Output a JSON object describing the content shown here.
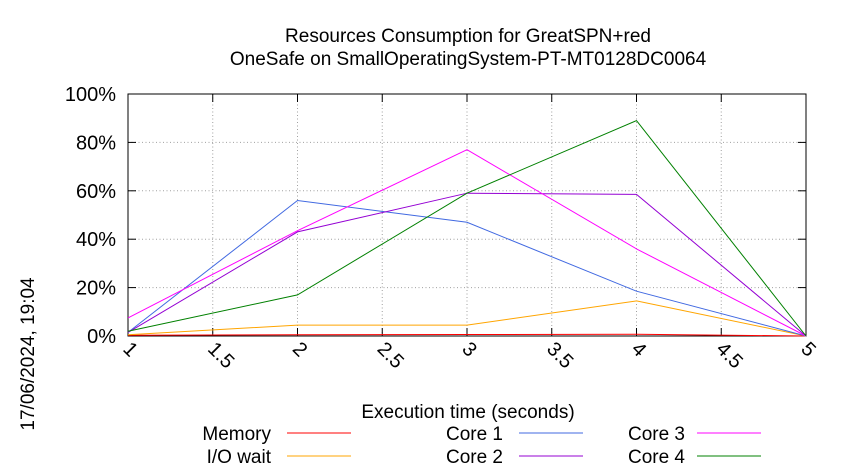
{
  "chart_data": {
    "type": "line",
    "title": "Resources Consumption for GreatSPN+red",
    "subtitle": "OneSafe on SmallOperatingSystem-PT-MT0128DC0064",
    "xlabel": "Execution time (seconds)",
    "ylabel": "",
    "timestamp": "17/06/2024, 19:04",
    "x": [
      1,
      2,
      3,
      4,
      5
    ],
    "xlim": [
      1,
      5
    ],
    "ylim": [
      0,
      100
    ],
    "xticks": [
      1,
      1.5,
      2,
      2.5,
      3,
      3.5,
      4,
      4.5,
      5
    ],
    "xtick_labels": [
      "1",
      "1.5",
      "2",
      "2.5",
      "3",
      "3.5",
      "4",
      "4.5",
      "5"
    ],
    "yticks": [
      0,
      20,
      40,
      60,
      80,
      100
    ],
    "ytick_labels": [
      "0%",
      "20%",
      "40%",
      "60%",
      "80%",
      "100%"
    ],
    "grid": true,
    "legend_position": "bottom",
    "series": [
      {
        "name": "Memory",
        "color": "#ff0000",
        "values": [
          0.3,
          0.5,
          0.6,
          0.7,
          0
        ]
      },
      {
        "name": "I/O wait",
        "color": "#ffa500",
        "values": [
          0.5,
          4.5,
          4.5,
          14.5,
          0
        ]
      },
      {
        "name": "Core 1",
        "color": "#4169e1",
        "values": [
          1.5,
          56,
          47,
          18.5,
          0
        ]
      },
      {
        "name": "Core 2",
        "color": "#9400d3",
        "values": [
          1.5,
          43,
          59,
          58.5,
          0
        ]
      },
      {
        "name": "Core 3",
        "color": "#ff00ff",
        "values": [
          7.5,
          43.5,
          77,
          36,
          0
        ]
      },
      {
        "name": "Core 4",
        "color": "#008000",
        "values": [
          2,
          17,
          59,
          89,
          0
        ]
      }
    ]
  }
}
